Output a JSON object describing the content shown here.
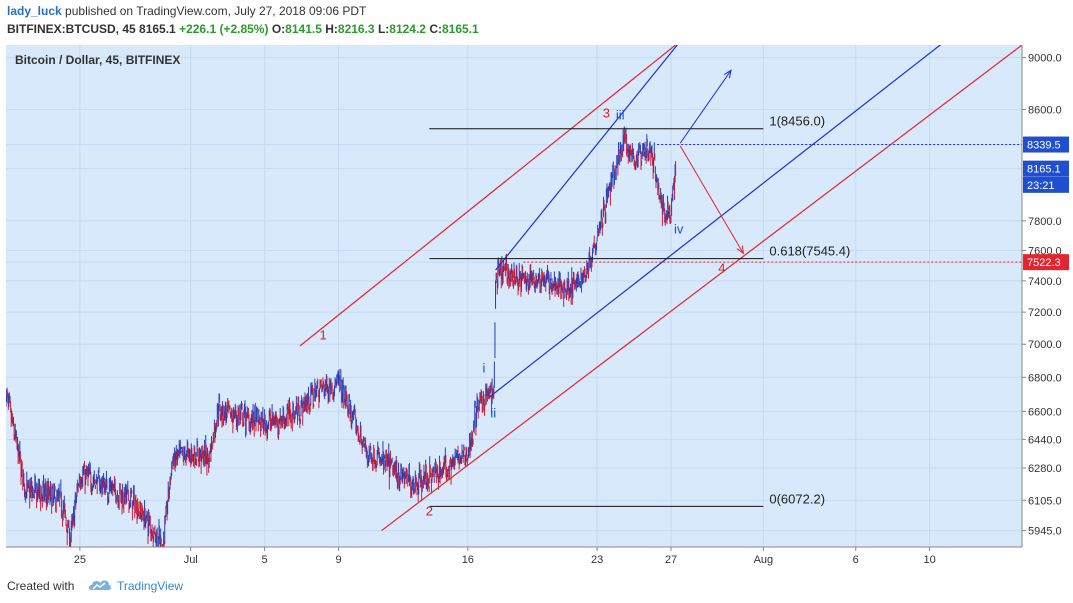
{
  "header": {
    "author": "lady_luck",
    "published": "published on TradingView.com, July 27, 2018 09:06 PDT",
    "symbol": "BITFINEX:BTCUSD, 45",
    "last": "8165.1",
    "change": "+226.1 (+2.85%)",
    "o_label": "O:",
    "o_value": "8141.5",
    "h_label": "H:",
    "h_value": "8216.3",
    "l_label": "L:",
    "l_value": "8124.2",
    "c_label": "C:",
    "c_value": "8165.1"
  },
  "footer": {
    "created": "Created with",
    "brand": "TradingView"
  },
  "colors": {
    "plot_bg": "#d7e9fb",
    "up": "#2b3eb4",
    "down": "#c8203a",
    "channel_blue": "#1f2fd6",
    "channel_red": "#e4242f",
    "label_blue": "#1f4fbf",
    "label_red": "#d82020"
  },
  "chart_data": {
    "type": "candlestick",
    "title": "Bitcoin / Dollar, 45, BITFINEX",
    "xlabel": "",
    "ylabel": "",
    "ylim": [
      5860,
      9100
    ],
    "scale": "log",
    "grid": true,
    "y_ticks": [
      "9000.0",
      "8600.0",
      "8339.5",
      "8165.1",
      "7800.0",
      "7600.0",
      "7522.3",
      "7400.0",
      "7200.0",
      "7000.0",
      "6800.0",
      "6600.0",
      "6440.0",
      "6280.0",
      "6105.0",
      "5945.0"
    ],
    "x_ticks": [
      "25",
      "Jul",
      "5",
      "9",
      "16",
      "23",
      "27",
      "Aug",
      "6",
      "10"
    ],
    "x_tick_dates": [
      "2018-06-25",
      "2018-07-01",
      "2018-07-05",
      "2018-07-09",
      "2018-07-16",
      "2018-07-23",
      "2018-07-27",
      "2018-08-01",
      "2018-08-06",
      "2018-08-10"
    ],
    "x_range": [
      "2018-06-21",
      "2018-08-15"
    ],
    "price_tags": [
      {
        "label": "8339.5",
        "value": 8339.5,
        "style": "blue"
      },
      {
        "label": "8165.1",
        "value": 8165.1,
        "style": "blue"
      },
      {
        "label": "23:21",
        "value": 8050,
        "style": "blue"
      },
      {
        "label": "7522.3",
        "value": 7522.3,
        "style": "red"
      }
    ],
    "price_path": [
      [
        "2018-06-21T00:00",
        6700
      ],
      [
        "2018-06-22T02:00",
        6150
      ],
      [
        "2018-06-23T00:00",
        6140
      ],
      [
        "2018-06-24T00:00",
        6100
      ],
      [
        "2018-06-24T12:00",
        5900
      ],
      [
        "2018-06-25T00:00",
        6250
      ],
      [
        "2018-06-26T00:00",
        6200
      ],
      [
        "2018-06-27T00:00",
        6150
      ],
      [
        "2018-06-28T00:00",
        6090
      ],
      [
        "2018-06-29T00:00",
        5940
      ],
      [
        "2018-06-29T12:00",
        5860
      ],
      [
        "2018-06-30T00:00",
        6320
      ],
      [
        "2018-07-01T00:00",
        6360
      ],
      [
        "2018-07-02T00:00",
        6340
      ],
      [
        "2018-07-02T12:00",
        6620
      ],
      [
        "2018-07-03T00:00",
        6580
      ],
      [
        "2018-07-04T00:00",
        6560
      ],
      [
        "2018-07-05T00:00",
        6530
      ],
      [
        "2018-07-06T00:00",
        6560
      ],
      [
        "2018-07-07T00:00",
        6620
      ],
      [
        "2018-07-08T00:00",
        6740
      ],
      [
        "2018-07-09T00:00",
        6760
      ],
      [
        "2018-07-10T00:00",
        6500
      ],
      [
        "2018-07-10T12:00",
        6370
      ],
      [
        "2018-07-11T00:00",
        6340
      ],
      [
        "2018-07-12T00:00",
        6270
      ],
      [
        "2018-07-13T00:00",
        6200
      ],
      [
        "2018-07-14T00:00",
        6230
      ],
      [
        "2018-07-15T00:00",
        6300
      ],
      [
        "2018-07-16T00:00",
        6350
      ],
      [
        "2018-07-16T12:00",
        6610
      ],
      [
        "2018-07-17T00:00",
        6700
      ],
      [
        "2018-07-17T10:00",
        6680
      ],
      [
        "2018-07-17T12:00",
        7400
      ],
      [
        "2018-07-18T00:00",
        7460
      ],
      [
        "2018-07-19T00:00",
        7400
      ],
      [
        "2018-07-20T00:00",
        7420
      ],
      [
        "2018-07-21T00:00",
        7350
      ],
      [
        "2018-07-22T00:00",
        7380
      ],
      [
        "2018-07-22T12:00",
        7490
      ],
      [
        "2018-07-23T00:00",
        7720
      ],
      [
        "2018-07-24T00:00",
        8150
      ],
      [
        "2018-07-24T12:00",
        8380
      ],
      [
        "2018-07-25T00:00",
        8220
      ],
      [
        "2018-07-25T12:00",
        8300
      ],
      [
        "2018-07-26T00:00",
        8260
      ],
      [
        "2018-07-26T12:00",
        7900
      ],
      [
        "2018-07-27T00:00",
        7850
      ],
      [
        "2018-07-27T06:00",
        8165
      ]
    ],
    "annotations": [
      {
        "text": "1",
        "date": "2018-07-08T04:00",
        "price": 7030,
        "color": "red"
      },
      {
        "text": "2",
        "date": "2018-07-13T22:00",
        "price": 6025,
        "color": "red"
      },
      {
        "text": "3",
        "date": "2018-07-23T12:00",
        "price": 8540,
        "color": "red"
      },
      {
        "text": "4",
        "date": "2018-07-29T18:00",
        "price": 7455,
        "color": "red"
      },
      {
        "text": "i",
        "date": "2018-07-16T21:00",
        "price": 6830,
        "color": "blue"
      },
      {
        "text": "ii",
        "date": "2018-07-17T09:00",
        "price": 6565,
        "color": "blue"
      },
      {
        "text": "iii",
        "date": "2018-07-24T06:00",
        "price": 8525,
        "color": "blue"
      },
      {
        "text": "iv",
        "date": "2018-07-27T10:00",
        "price": 7715,
        "color": "blue"
      }
    ],
    "fib_levels": [
      {
        "label": "1(8456.0)",
        "value": 8456.0
      },
      {
        "label": "0.618(7545.4)",
        "value": 7545.4
      },
      {
        "label": "0(6072.2)",
        "value": 6072.2
      }
    ],
    "fib_x_range": [
      "2018-07-13T22:00",
      "2018-08-01T00:00"
    ],
    "dotted_levels": [
      {
        "value": 8339.5,
        "color": "blue",
        "from": "2018-07-26T06:00"
      },
      {
        "value": 7522.3,
        "color": "red",
        "from": "2018-07-19T00:00"
      }
    ],
    "channels": [
      {
        "color": "red",
        "from": [
          "2018-07-06T22:00",
          6990
        ],
        "to": [
          "2018-07-27T12:00",
          9130
        ]
      },
      {
        "color": "red",
        "from": [
          "2018-07-11T08:00",
          5945
        ],
        "to": [
          "2018-08-15T00:00",
          9100
        ]
      },
      {
        "color": "blue",
        "from": [
          "2018-07-17T12:00",
          7470
        ],
        "to": [
          "2018-07-27T12:00",
          9130
        ]
      },
      {
        "color": "blue",
        "from": [
          "2018-07-17T03:00",
          6680
        ],
        "to": [
          "2018-08-10T20:00",
          9130
        ]
      }
    ],
    "arrows": [
      {
        "color": "blue",
        "from": [
          "2018-07-27T12:00",
          8350
        ],
        "to": [
          "2018-07-30T06:00",
          8900
        ]
      },
      {
        "color": "red",
        "from": [
          "2018-07-27T12:00",
          8330
        ],
        "to": [
          "2018-07-30T22:00",
          7580
        ]
      }
    ]
  }
}
